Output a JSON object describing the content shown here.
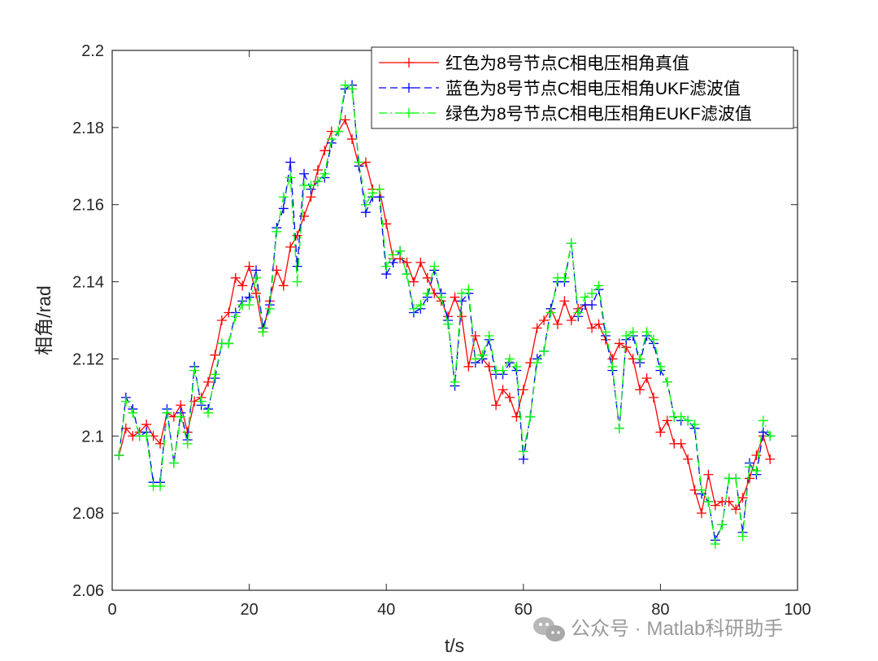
{
  "chart_data": {
    "type": "line",
    "xlabel": "t/s",
    "ylabel": "相角/rad",
    "xlim": [
      0,
      100
    ],
    "ylim": [
      2.06,
      2.2
    ],
    "xticks": [
      0,
      20,
      40,
      60,
      80,
      100
    ],
    "yticks": [
      2.06,
      2.08,
      2.1,
      2.12,
      2.14,
      2.16,
      2.18,
      2.2
    ],
    "xtick_labels": [
      "0",
      "20",
      "40",
      "60",
      "80",
      "100"
    ],
    "ytick_labels": [
      "2.06",
      "2.08",
      "2.1",
      "2.12",
      "2.14",
      "2.16",
      "2.18",
      "2.2"
    ],
    "grid": false,
    "legend_position": "top-right",
    "x": [
      1,
      2,
      3,
      4,
      5,
      6,
      7,
      8,
      9,
      10,
      11,
      12,
      13,
      14,
      15,
      16,
      17,
      18,
      19,
      20,
      21,
      22,
      23,
      24,
      25,
      26,
      27,
      28,
      29,
      30,
      31,
      32,
      33,
      34,
      35,
      36,
      37,
      38,
      39,
      40,
      41,
      42,
      43,
      44,
      45,
      46,
      47,
      48,
      49,
      50,
      51,
      52,
      53,
      54,
      55,
      56,
      57,
      58,
      59,
      60,
      61,
      62,
      63,
      64,
      65,
      66,
      67,
      68,
      69,
      70,
      71,
      72,
      73,
      74,
      75,
      76,
      77,
      78,
      79,
      80,
      81,
      82,
      83,
      84,
      85,
      86,
      87,
      88,
      89,
      90,
      91,
      92,
      93,
      94,
      95,
      96
    ],
    "series": [
      {
        "name": "红色为8号节点C相电压相角真值",
        "color": "#ff0000",
        "dash": "solid",
        "values": [
          2.095,
          2.102,
          2.1,
          2.101,
          2.103,
          2.1,
          2.098,
          2.106,
          2.105,
          2.108,
          2.101,
          2.109,
          2.11,
          2.114,
          2.121,
          2.13,
          2.132,
          2.141,
          2.139,
          2.144,
          2.137,
          2.127,
          2.135,
          2.143,
          2.139,
          2.149,
          2.152,
          2.157,
          2.162,
          2.169,
          2.174,
          2.179,
          2.179,
          2.182,
          2.177,
          2.17,
          2.171,
          2.164,
          2.164,
          2.155,
          2.146,
          2.146,
          2.145,
          2.14,
          2.145,
          2.141,
          2.137,
          2.135,
          2.131,
          2.136,
          2.131,
          2.118,
          2.126,
          2.12,
          2.118,
          2.108,
          2.112,
          2.11,
          2.105,
          2.112,
          2.119,
          2.128,
          2.13,
          2.133,
          2.129,
          2.135,
          2.13,
          2.133,
          2.134,
          2.128,
          2.129,
          2.125,
          2.12,
          2.124,
          2.123,
          2.12,
          2.112,
          2.115,
          2.11,
          2.101,
          2.104,
          2.098,
          2.098,
          2.094,
          2.086,
          2.08,
          2.09,
          2.082,
          2.083,
          2.083,
          2.081,
          2.084,
          2.089,
          2.095,
          2.1,
          2.094
        ]
      },
      {
        "name": "蓝色为8号节点C相电压相角UKF滤波值",
        "color": "#0000ff",
        "dash": "dashed",
        "values": [
          2.095,
          2.11,
          2.107,
          2.1,
          2.101,
          2.088,
          2.088,
          2.107,
          2.093,
          2.106,
          2.099,
          2.118,
          2.108,
          2.107,
          2.115,
          2.124,
          2.124,
          2.132,
          2.135,
          2.136,
          2.143,
          2.128,
          2.134,
          2.154,
          2.159,
          2.171,
          2.144,
          2.168,
          2.164,
          2.166,
          2.167,
          2.176,
          2.179,
          2.19,
          2.191,
          2.17,
          2.158,
          2.162,
          2.162,
          2.142,
          2.145,
          2.148,
          2.142,
          2.132,
          2.133,
          2.136,
          2.143,
          2.137,
          2.13,
          2.113,
          2.135,
          2.137,
          2.119,
          2.12,
          2.125,
          2.116,
          2.116,
          2.119,
          2.117,
          2.094,
          2.105,
          2.12,
          2.122,
          2.133,
          2.14,
          2.14,
          2.15,
          2.131,
          2.134,
          2.134,
          2.138,
          2.126,
          2.117,
          2.102,
          2.125,
          2.126,
          2.119,
          2.126,
          2.124,
          2.117,
          2.114,
          2.105,
          2.104,
          2.104,
          2.102,
          2.085,
          2.083,
          2.073,
          2.077,
          2.089,
          2.089,
          2.075,
          2.093,
          2.09,
          2.101,
          2.1
        ]
      },
      {
        "name": "绿色为8号节点C相电压相角EUKF滤波值",
        "color": "#00ff00",
        "dash": "dashdot",
        "values": [
          2.095,
          2.109,
          2.106,
          2.1,
          2.1,
          2.087,
          2.087,
          2.106,
          2.093,
          2.105,
          2.098,
          2.117,
          2.109,
          2.106,
          2.116,
          2.124,
          2.124,
          2.131,
          2.134,
          2.134,
          2.141,
          2.127,
          2.133,
          2.153,
          2.162,
          2.167,
          2.14,
          2.165,
          2.165,
          2.166,
          2.168,
          2.177,
          2.179,
          2.191,
          2.19,
          2.171,
          2.16,
          2.163,
          2.164,
          2.144,
          2.147,
          2.148,
          2.142,
          2.133,
          2.134,
          2.137,
          2.144,
          2.136,
          2.129,
          2.114,
          2.137,
          2.138,
          2.12,
          2.121,
          2.126,
          2.117,
          2.117,
          2.12,
          2.118,
          2.096,
          2.105,
          2.119,
          2.122,
          2.132,
          2.141,
          2.141,
          2.15,
          2.132,
          2.136,
          2.137,
          2.139,
          2.127,
          2.118,
          2.102,
          2.126,
          2.127,
          2.12,
          2.127,
          2.125,
          2.118,
          2.114,
          2.105,
          2.105,
          2.104,
          2.103,
          2.086,
          2.083,
          2.072,
          2.077,
          2.089,
          2.089,
          2.074,
          2.092,
          2.091,
          2.104,
          2.1
        ]
      }
    ]
  },
  "watermark": {
    "text": "公众号 · Matlab科研助手",
    "icon": "wechat-icon"
  }
}
